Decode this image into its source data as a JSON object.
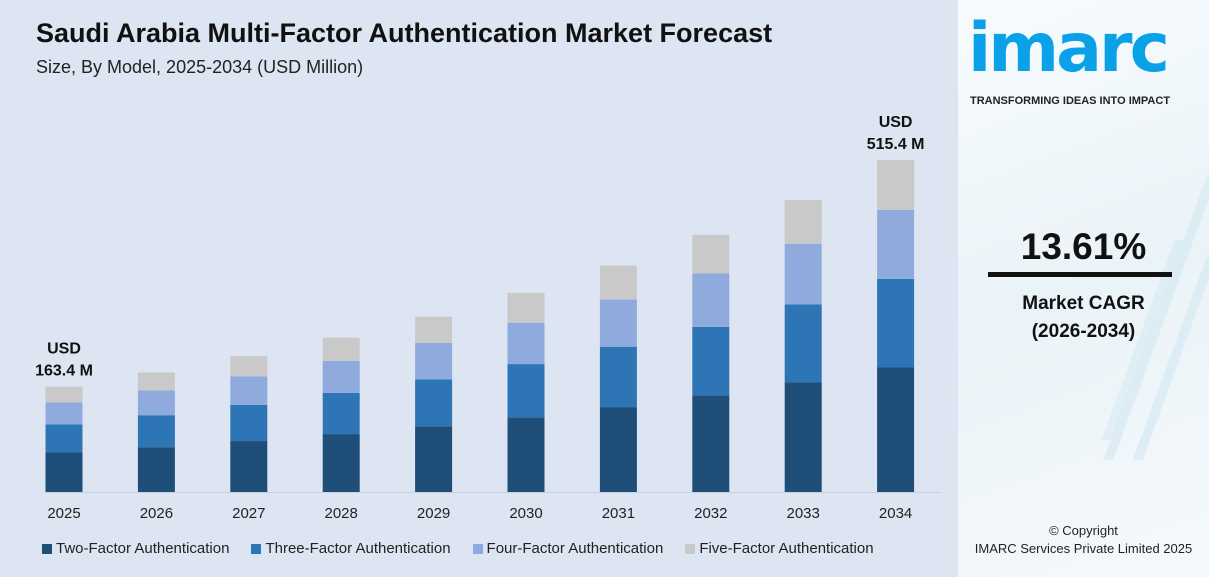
{
  "title": "Saudi Arabia Multi-Factor Authentication Market Forecast",
  "subtitle": "Size, By Model, 2025-2034 (USD Million)",
  "chart_data": {
    "type": "bar",
    "stacked": true,
    "categories": [
      "2025",
      "2026",
      "2027",
      "2028",
      "2029",
      "2030",
      "2031",
      "2032",
      "2033",
      "2034"
    ],
    "series": [
      {
        "name": "Two-Factor Authentication",
        "color": "#1f4e79",
        "values": [
          61.3,
          69.6,
          79.1,
          89.9,
          102.1,
          116.0,
          131.8,
          149.7,
          170.1,
          193.3
        ]
      },
      {
        "name": "Three-Factor Authentication",
        "color": "#2e75b6",
        "values": [
          43.6,
          49.6,
          56.3,
          64.0,
          72.7,
          82.6,
          93.8,
          106.6,
          121.1,
          137.6
        ]
      },
      {
        "name": "Four-Factor Authentication",
        "color": "#8faadc",
        "values": [
          34.0,
          38.6,
          43.9,
          49.8,
          56.6,
          64.3,
          73.1,
          83.0,
          94.3,
          107.2
        ]
      },
      {
        "name": "Five-Factor Authentication",
        "color": "#c9c9c9",
        "values": [
          24.5,
          27.8,
          31.6,
          35.9,
          40.8,
          46.4,
          52.7,
          59.9,
          68.0,
          77.3
        ]
      }
    ],
    "totals": [
      163.4,
      185.6,
      210.9,
      239.6,
      272.2,
      309.3,
      351.4,
      399.2,
      453.5,
      515.4
    ],
    "annotations": [
      {
        "category": "2025",
        "line1": "USD",
        "line2": "163.4 M"
      },
      {
        "category": "2034",
        "line1": "USD",
        "line2": "515.4 M"
      }
    ],
    "xlabel": "",
    "ylabel": "",
    "grid": false,
    "legend_position": "bottom"
  },
  "brand": {
    "logo": "imarc",
    "tagline": "TRANSFORMING IDEAS INTO IMPACT",
    "color": "#0aa1e8"
  },
  "cagr": {
    "value": "13.61%",
    "label_line1": "Market CAGR",
    "label_line2": "(2026-2034)"
  },
  "copyright": {
    "line1": "© Copyright",
    "line2": "IMARC Services Private Limited 2025"
  }
}
